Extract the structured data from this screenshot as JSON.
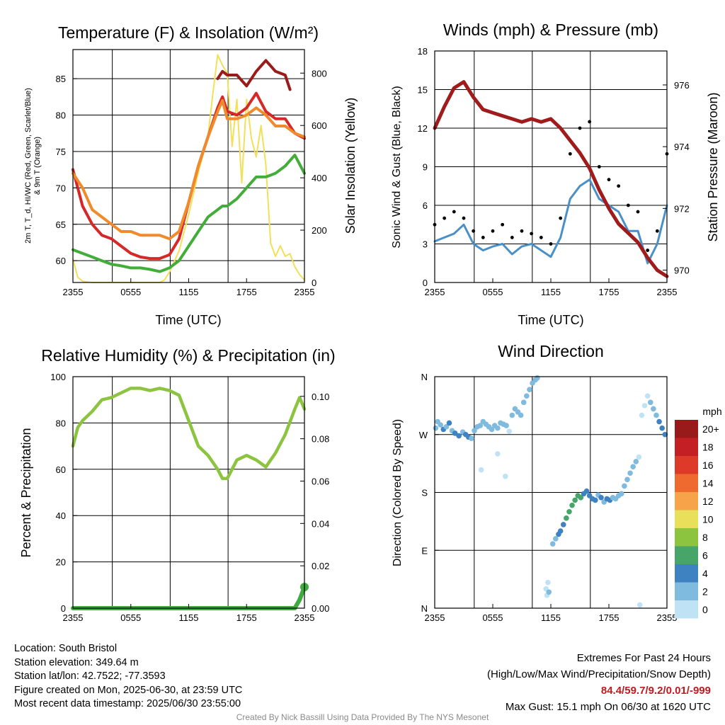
{
  "colors": {
    "temp": "#d62828",
    "dewpoint": "#43ad3a",
    "windchill": "#9b1b1b",
    "temp9m": "#f08a2b",
    "solar": "#f2df5a",
    "wind": "#4a90c8",
    "gust": "#000000",
    "pressure": "#a01c1c",
    "rh": "#8cc43f",
    "precip": "#3faa3f"
  },
  "chart_data": [
    {
      "type": "line",
      "title": "Temperature (F) & Insolation (W/m²)",
      "xlabel": "Time (UTC)",
      "ylabel": "2m T, Td, HI/WC (Red, Green, Scarlet/Blue) & 9m T (Orange)",
      "ylabel_line1": "2m T, T_d, HI/WC (Red, Green, Scarlet/Blue)",
      "ylabel_line2": "& 9m T (Orange)",
      "y2label": "Solar Insolation (Yellow)",
      "x_ticks": [
        "2355",
        "0555",
        "1155",
        "1755",
        "2355"
      ],
      "y_ticks": [
        "60",
        "65",
        "70",
        "75",
        "80",
        "85"
      ],
      "y2_ticks": [
        "0",
        "200",
        "400",
        "600",
        "800"
      ],
      "ylim": [
        57,
        89
      ],
      "y2lim": [
        0,
        890
      ],
      "xlim": [
        0,
        24
      ],
      "x": [
        0,
        1,
        2,
        3,
        4,
        5,
        6,
        7,
        8,
        9,
        10,
        11,
        12,
        13,
        14,
        15,
        15.5,
        16,
        17,
        18,
        19,
        20,
        21,
        22,
        23,
        24
      ],
      "series": [
        {
          "name": "2m T",
          "key": "temp",
          "values": [
            72.5,
            67.5,
            65,
            63.5,
            63,
            62,
            61,
            60.5,
            60.3,
            60.3,
            60.8,
            63,
            68,
            73,
            77,
            81,
            82.5,
            80.5,
            80,
            81,
            83,
            80.5,
            79.5,
            79.5,
            77.5,
            76.8
          ]
        },
        {
          "name": "9m T",
          "key": "temp9m",
          "values": [
            72,
            70,
            67,
            66,
            65,
            64,
            64,
            63.5,
            63.5,
            63.5,
            63,
            64,
            68,
            73,
            77,
            80.5,
            82,
            79.5,
            79.5,
            80,
            81,
            80,
            78.5,
            78.5,
            77.5,
            77
          ]
        },
        {
          "name": "HI/WC",
          "key": "windchill",
          "x": [
            15,
            15.5,
            16,
            17,
            18,
            19,
            20,
            21,
            22,
            22.5
          ],
          "values": [
            85,
            86,
            85.5,
            85.5,
            84,
            86,
            87.5,
            86,
            85.5,
            83.5
          ]
        },
        {
          "name": "Td",
          "key": "dewpoint",
          "values": [
            61.5,
            61,
            60.5,
            60,
            59.5,
            59.3,
            59,
            59,
            58.8,
            58.5,
            59,
            60,
            62,
            64,
            66,
            67,
            67.5,
            67.5,
            68.5,
            70,
            71.5,
            71.5,
            72,
            73,
            74.5,
            72
          ]
        }
      ],
      "solar": {
        "key": "solar",
        "x": [
          0,
          0.5,
          1,
          2,
          4,
          6,
          8,
          9,
          9.5,
          10,
          11,
          12,
          13,
          14,
          14.5,
          15,
          15.5,
          16,
          16.5,
          17,
          17.5,
          18,
          18.5,
          19,
          19.5,
          20,
          20.5,
          21,
          21.5,
          22,
          22.5,
          23,
          23.5,
          24
        ],
        "values": [
          90,
          20,
          5,
          0,
          0,
          0,
          0,
          0,
          10,
          40,
          120,
          260,
          420,
          560,
          720,
          870,
          830,
          800,
          520,
          700,
          380,
          700,
          550,
          480,
          600,
          450,
          150,
          100,
          140,
          100,
          110,
          60,
          30,
          10
        ]
      }
    },
    {
      "type": "line",
      "title": "Winds (mph) & Pressure (mb)",
      "xlabel": "Time (UTC)",
      "ylabel": "Sonic Wind & Gust (Blue, Black)",
      "y2label": "Station Pressure (Maroon)",
      "x_ticks": [
        "2355",
        "0555",
        "1155",
        "1755",
        "2355"
      ],
      "y_ticks": [
        "0",
        "3",
        "6",
        "9",
        "12",
        "15",
        "18"
      ],
      "y2_ticks": [
        "970",
        "972",
        "974",
        "976"
      ],
      "ylim": [
        0,
        18
      ],
      "y2lim": [
        969.6,
        977.1
      ],
      "xlim": [
        0,
        24
      ],
      "x": [
        0,
        1,
        2,
        3,
        4,
        5,
        6,
        7,
        8,
        9,
        10,
        11,
        12,
        13,
        14,
        15,
        16,
        17,
        18,
        19,
        20,
        21,
        22,
        23,
        24
      ],
      "wind": {
        "key": "wind",
        "values": [
          3.2,
          3.5,
          3.8,
          4.5,
          3,
          2.5,
          2.8,
          3,
          2.2,
          2.8,
          3,
          2.5,
          2,
          3.5,
          6.5,
          7.5,
          8,
          6.5,
          6,
          5.5,
          4,
          4,
          1.5,
          3,
          6
        ]
      },
      "gust": {
        "key": "gust",
        "values": [
          4.5,
          5,
          5.5,
          5,
          4,
          3.5,
          4,
          4.5,
          3.5,
          4,
          3.8,
          3.5,
          3,
          5,
          10,
          12,
          12.5,
          9,
          8,
          7.5,
          6,
          5.5,
          2.5,
          4,
          10
        ]
      },
      "pressure": {
        "key": "pressure",
        "values": [
          974.6,
          975.3,
          975.9,
          976.1,
          975.6,
          975.2,
          975.1,
          975,
          974.9,
          974.8,
          974.9,
          974.8,
          974.9,
          974.6,
          974.2,
          973.8,
          973.3,
          972.6,
          972,
          971.5,
          971.2,
          970.9,
          970.4,
          970,
          969.8
        ]
      }
    },
    {
      "type": "line",
      "title": "Relative Humidity (%) & Precipitation (in)",
      "ylabel": "Percent & Precipitation",
      "x_ticks": [
        "2355",
        "0555",
        "1155",
        "1755",
        "2355"
      ],
      "y_ticks": [
        "0",
        "20",
        "40",
        "60",
        "80",
        "100"
      ],
      "y2_ticks": [
        "0.00",
        "0.02",
        "0.04",
        "0.06",
        "0.08",
        "0.10"
      ],
      "ylim": [
        0,
        100
      ],
      "y2lim": [
        0,
        0.1093
      ],
      "xlim": [
        0,
        24
      ],
      "x": [
        0,
        0.5,
        1,
        2,
        3,
        4,
        5,
        6,
        7,
        8,
        9,
        10,
        11,
        12,
        13,
        14,
        15,
        15.5,
        16,
        17,
        18,
        19,
        20,
        21,
        22,
        23,
        23.5,
        24
      ],
      "series": [
        {
          "name": "RH",
          "key": "rh",
          "values": [
            70,
            78,
            81,
            85,
            90,
            91,
            93,
            95,
            95,
            94,
            95,
            94,
            92,
            81,
            70,
            66,
            60,
            56,
            56,
            64,
            66,
            64,
            61,
            67,
            75,
            86,
            91,
            86
          ]
        },
        {
          "name": "Precip",
          "key": "precip",
          "values": [
            0,
            0,
            0,
            0,
            0,
            0,
            0,
            0,
            0,
            0,
            0,
            0,
            0,
            0,
            0,
            0,
            0,
            0,
            0,
            0,
            0,
            0,
            0,
            0,
            0,
            0,
            0.004,
            0.01
          ]
        }
      ]
    },
    {
      "type": "scatter",
      "title": "Wind Direction",
      "ylabel": "Direction (Colored By Speed)",
      "x_ticks": [
        "2355",
        "0555",
        "1155",
        "1755",
        "2355"
      ],
      "y_ticks": [
        "N",
        "E",
        "S",
        "W",
        "N"
      ],
      "ylim": [
        0,
        360
      ],
      "xlim": [
        0,
        24
      ],
      "colorbar": {
        "title": "mph",
        "labels": [
          "20+",
          "18",
          "16",
          "14",
          "12",
          "10",
          "8",
          "6",
          "4",
          "2",
          "0"
        ],
        "colors": [
          "#991a1a",
          "#c41f24",
          "#dd3a2a",
          "#ef6a2f",
          "#f6a349",
          "#e8e05a",
          "#8cc43f",
          "#47a56a",
          "#3e82c2",
          "#7fbadf",
          "#bfe3f5"
        ]
      },
      "x": [
        0.1,
        0.3,
        0.6,
        0.9,
        1.2,
        1.5,
        1.8,
        2.1,
        2.5,
        2.9,
        3.2,
        3.5,
        3.8,
        4.1,
        4.4,
        4.7,
        5,
        5.3,
        5.6,
        5.9,
        6.2,
        6.5,
        6.8,
        7.1,
        7.4,
        7.7,
        8,
        8.3,
        8.6,
        8.9,
        9.2,
        9.5,
        9.8,
        10.1,
        10.4,
        10.6,
        11.5,
        11.6,
        11.7,
        11.8,
        12.2,
        12.5,
        12.8,
        13,
        13.3,
        13.6,
        13.9,
        14.2,
        14.5,
        14.8,
        15.1,
        15.4,
        15.7,
        16,
        16.3,
        16.6,
        16.9,
        17.2,
        17.5,
        17.8,
        18.1,
        18.4,
        18.7,
        19,
        19.3,
        19.6,
        19.9,
        20.2,
        20.5,
        20.8,
        21.1,
        21.4,
        21.7,
        22,
        22.3,
        22.6,
        22.9,
        23.2,
        23.5,
        23.8,
        4.8,
        6.5,
        7.3,
        21.2
      ],
      "values": [
        280,
        290,
        285,
        278,
        282,
        288,
        276,
        272,
        268,
        274,
        270,
        266,
        264,
        276,
        282,
        284,
        290,
        286,
        282,
        278,
        284,
        280,
        288,
        286,
        284,
        275,
        300,
        310,
        305,
        300,
        320,
        330,
        340,
        350,
        355,
        358,
        30,
        20,
        40,
        25,
        100,
        108,
        115,
        120,
        130,
        140,
        150,
        160,
        168,
        175,
        172,
        178,
        182,
        175,
        170,
        168,
        176,
        172,
        165,
        170,
        168,
        172,
        170,
        175,
        178,
        190,
        200,
        210,
        220,
        228,
        235,
        300,
        315,
        330,
        320,
        310,
        300,
        290,
        280,
        270,
        215,
        240,
        205,
        5
      ],
      "speeds": [
        3.5,
        2.5,
        3.5,
        4.5,
        3.5,
        4.5,
        3.5,
        4.5,
        4.5,
        3.5,
        4.5,
        4.5,
        3.5,
        2.5,
        3.5,
        2.5,
        2.5,
        3.5,
        2.5,
        3.5,
        2.5,
        2.5,
        3.5,
        2.5,
        2.5,
        1.5,
        2.5,
        2.5,
        2.5,
        2.5,
        2.5,
        2.5,
        2.5,
        2.5,
        2.5,
        2.5,
        1.5,
        1,
        1.5,
        2.5,
        3.5,
        3.5,
        4.5,
        4.5,
        5,
        6,
        7,
        6.5,
        7,
        6,
        6.5,
        5,
        4.5,
        4.5,
        4.5,
        4.5,
        3.5,
        4.5,
        3.5,
        4.5,
        4,
        3.5,
        3.5,
        3.5,
        3.5,
        3.5,
        3,
        3.5,
        2.5,
        2.5,
        1.5,
        1,
        1,
        1.5,
        2.5,
        3,
        3.5,
        4.5,
        5.5,
        4.5,
        1.5,
        1.5,
        1,
        1
      ]
    }
  ],
  "info_left": {
    "location": "Location: South Bristol",
    "elevation": "Station elevation: 349.64 m",
    "latlon": "Station lat/lon: 42.7522; -77.3593",
    "created": "Figure created on Mon, 2025-06-30, at 23:59 UTC",
    "recent": "Most recent data timestamp: 2025/06/30 23:55:00"
  },
  "info_right": {
    "title": "Extremes For Past 24 Hours",
    "legend": "(High/Low/Max Wind/Precipitation/Snow Depth)",
    "values": "84.4/59.7/9.2/0.01/-999",
    "gust": "Max Gust: 15.1 mph On 06/30 at 1620 UTC"
  },
  "credit": "Created By Nick Bassill Using Data Provided By The NYS Mesonet"
}
